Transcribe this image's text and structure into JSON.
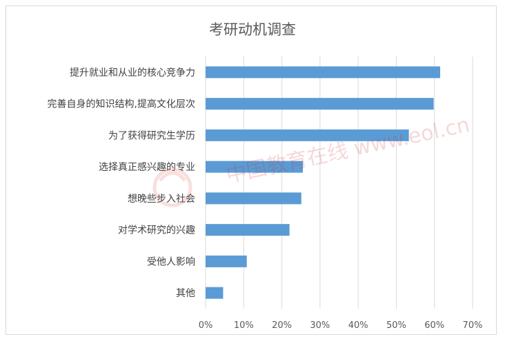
{
  "chart_data": {
    "type": "bar",
    "orientation": "horizontal",
    "title": "考研动机调查",
    "categories": [
      "提升就业和从业的核心竞争力",
      "完善自身的知识结构,提高文化层次",
      "为了获得研究生学历",
      "选择真正感兴趣的专业",
      "想晚些步入社会",
      "对学术研究的兴趣",
      "受他人影响",
      "其他"
    ],
    "values": [
      61.5,
      59.8,
      53.3,
      25.5,
      25.1,
      22.0,
      10.8,
      4.6
    ],
    "unit": "%",
    "xlim": [
      0,
      70
    ],
    "xticks": [
      "0%",
      "10%",
      "20%",
      "30%",
      "40%",
      "50%",
      "60%",
      "70%"
    ],
    "grid": "vertical",
    "legend": "none",
    "bar_color": "#5b9bd5"
  },
  "watermark": "中国教育在线 www.eol.cn"
}
